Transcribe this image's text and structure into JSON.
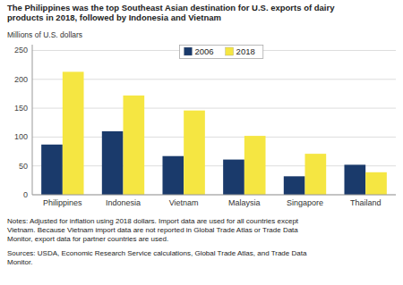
{
  "chart_data": {
    "type": "bar",
    "title": "The Philippines was the top Southeast Asian destination for U.S. exports of dairy\nproducts in 2018, followed by Indonesia and Vietnam",
    "ylabel": "Millions of U.S. dollars",
    "categories": [
      "Philippines",
      "Indonesia",
      "Vietnam",
      "Malaysia",
      "Singapore",
      "Thailand"
    ],
    "series": [
      {
        "name": "2006",
        "color": "#1a3a6b",
        "values": [
          87,
          110,
          67,
          61,
          32,
          52
        ]
      },
      {
        "name": "2018",
        "color": "#f5e642",
        "values": [
          213,
          172,
          146,
          102,
          71,
          39
        ]
      }
    ],
    "ylim": [
      0,
      260
    ],
    "yticks": [
      0,
      50,
      100,
      150,
      200,
      250
    ],
    "grid": true,
    "legend": "top",
    "annotations": [
      "Notes: Adjusted for inflation using 2018 dollars. Import data are used for all countries except\nVietnam. Because Vietnam import data are not reported in Global Trade Atlas or Trade Data\nMonitor, export data for partner countries are used.",
      "Sources: USDA, Economic Research Service calculations, Global Trade Atlas, and Trade Data\nMonitor."
    ]
  }
}
